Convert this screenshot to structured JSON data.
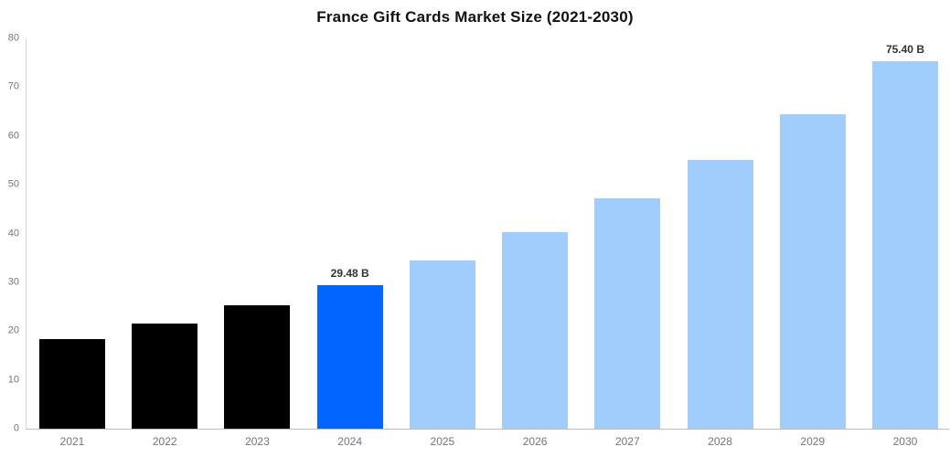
{
  "title": "France Gift Cards Market Size (2021-2030)",
  "chart_data": {
    "type": "bar",
    "title": "France Gift Cards Market Size (2021-2030)",
    "categories": [
      "2021",
      "2022",
      "2023",
      "2024",
      "2025",
      "2026",
      "2027",
      "2028",
      "2029",
      "2030"
    ],
    "values": [
      18.43,
      21.56,
      25.21,
      29.48,
      34.48,
      40.32,
      47.15,
      55.14,
      64.48,
      75.4
    ],
    "data_labels": [
      "",
      "",
      "",
      "29.48 B",
      "",
      "",
      "",
      "",
      "",
      "75.40 B"
    ],
    "bar_colors": [
      "#000000",
      "#000000",
      "#000000",
      "#0066ff",
      "#a0cdfc",
      "#a0cdfc",
      "#a0cdfc",
      "#a0cdfc",
      "#a0cdfc",
      "#a0cdfc"
    ],
    "xlabel": "",
    "ylabel": "",
    "ylim": [
      0,
      80
    ],
    "yticks": [
      0,
      10,
      20,
      30,
      40,
      50,
      60,
      70,
      80
    ],
    "grid": false,
    "legend": false
  },
  "colors": {
    "background": "#ffffff",
    "title": "#111111",
    "historical_bar": "#000000",
    "highlight_bar": "#0066ff",
    "forecast_bar": "#a0cdfc",
    "y_axis_line": "#d6d6d6",
    "x_axis_line": "#bdbdbd",
    "tick_label": "#757575",
    "data_label": "#333333"
  }
}
